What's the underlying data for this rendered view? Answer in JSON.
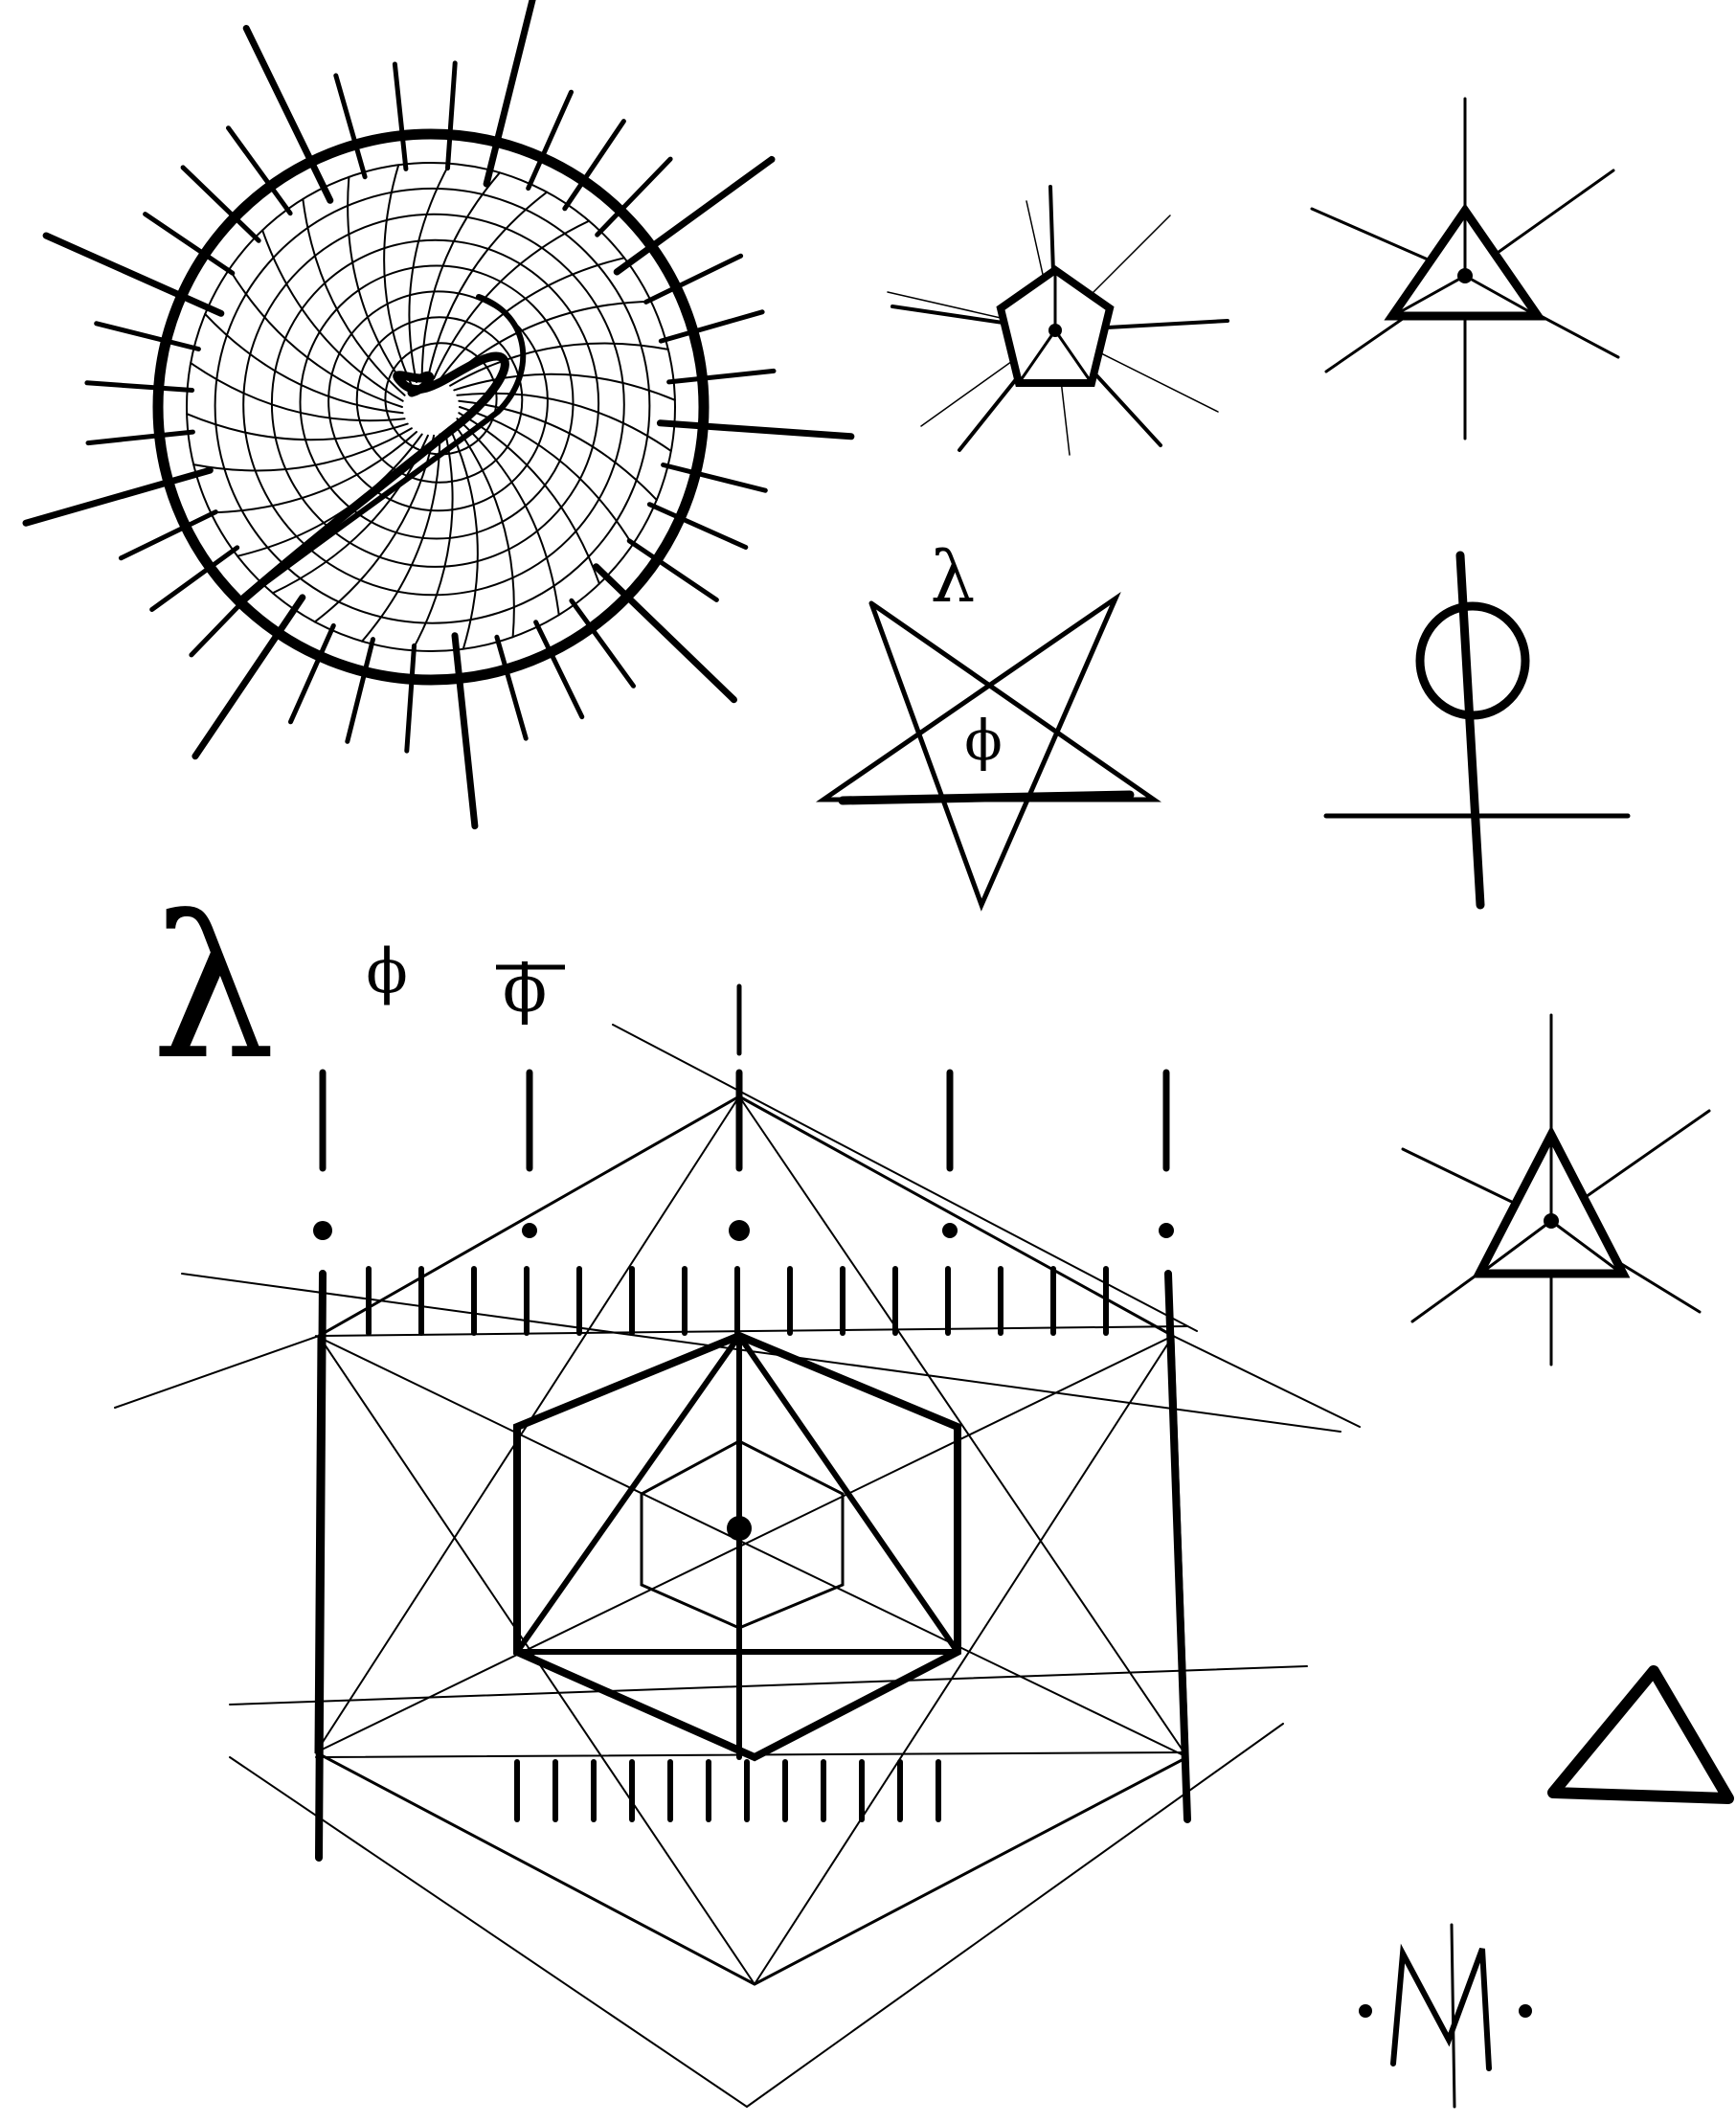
{
  "sheet": {
    "ink_color": "#000000",
    "paper_color": "#ffffff"
  },
  "glyphs": {
    "lambda_small": "λ",
    "phi_small": "ϕ",
    "lambda_large": "λ",
    "phi_plain": "ϕ",
    "phi_barred": "ϕ"
  },
  "elements": [
    {
      "name": "spiral-sunburst-sigil",
      "icon": "golden-spiral-sun-icon"
    },
    {
      "name": "pentagon-star-sigil",
      "icon": "pentagon-with-dot-icon"
    },
    {
      "name": "triangle-star-sigil-top",
      "icon": "triangle-with-dot-icon"
    },
    {
      "name": "inverted-pentagram-sigil",
      "icon": "inverted-pentagram-icon"
    },
    {
      "name": "circled-staff-sigil",
      "icon": "phi-staff-icon"
    },
    {
      "name": "metatron-hexagon-sigil",
      "icon": "hexagon-grid-icon"
    },
    {
      "name": "triangle-star-sigil-right",
      "icon": "triangle-with-dot-icon"
    },
    {
      "name": "plain-triangle-sigil",
      "icon": "triangle-icon"
    },
    {
      "name": "m-monogram-sigil",
      "icon": "m-monogram-icon"
    }
  ]
}
